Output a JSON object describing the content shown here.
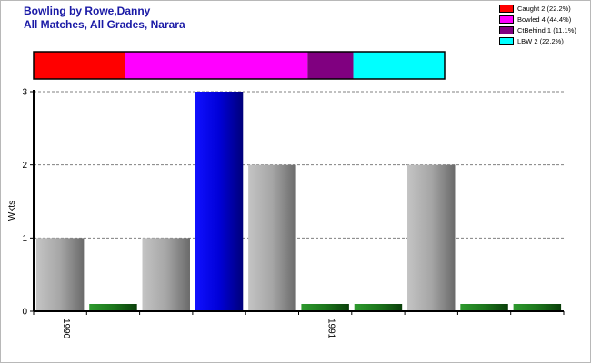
{
  "chart_data": {
    "type": "bar",
    "title": "Bowling by Rowe,Danny",
    "subtitle": "All Matches, All Grades, Narara",
    "ylabel": "Wkts",
    "ylim": [
      0,
      3
    ],
    "yticks": [
      0,
      1,
      2,
      3
    ],
    "grid": true,
    "values": [
      1,
      0,
      1,
      3,
      2,
      0,
      0,
      2,
      0,
      0
    ],
    "highlight_index": 3,
    "x_tick_labels": [
      {
        "label": "1990",
        "index": 0
      },
      {
        "label": "1991",
        "index": 5
      }
    ],
    "summary_bar": {
      "segments": [
        {
          "name": "Caught",
          "count": 2,
          "percent": 22.2,
          "color": "#ff0000",
          "legend": "Caught 2 (22.2%)"
        },
        {
          "name": "Bowled",
          "count": 4,
          "percent": 44.4,
          "color": "#ff00ff",
          "legend": "Bowled 4 (44.4%)"
        },
        {
          "name": "CtBehind",
          "count": 1,
          "percent": 11.1,
          "color": "#800080",
          "legend": "CtBehind 1 (11.1%)"
        },
        {
          "name": "LBW",
          "count": 2,
          "percent": 22.2,
          "color": "#00ffff",
          "legend": "LBW 2 (22.2%)"
        }
      ]
    },
    "legend_position": "top-right",
    "colors": {
      "bar_gray": "#a8a8a8",
      "bar_highlight": "#0000e0",
      "bar_zero": "#1e7a1e",
      "grid": "#808080",
      "title": "#1a1aa6"
    }
  }
}
